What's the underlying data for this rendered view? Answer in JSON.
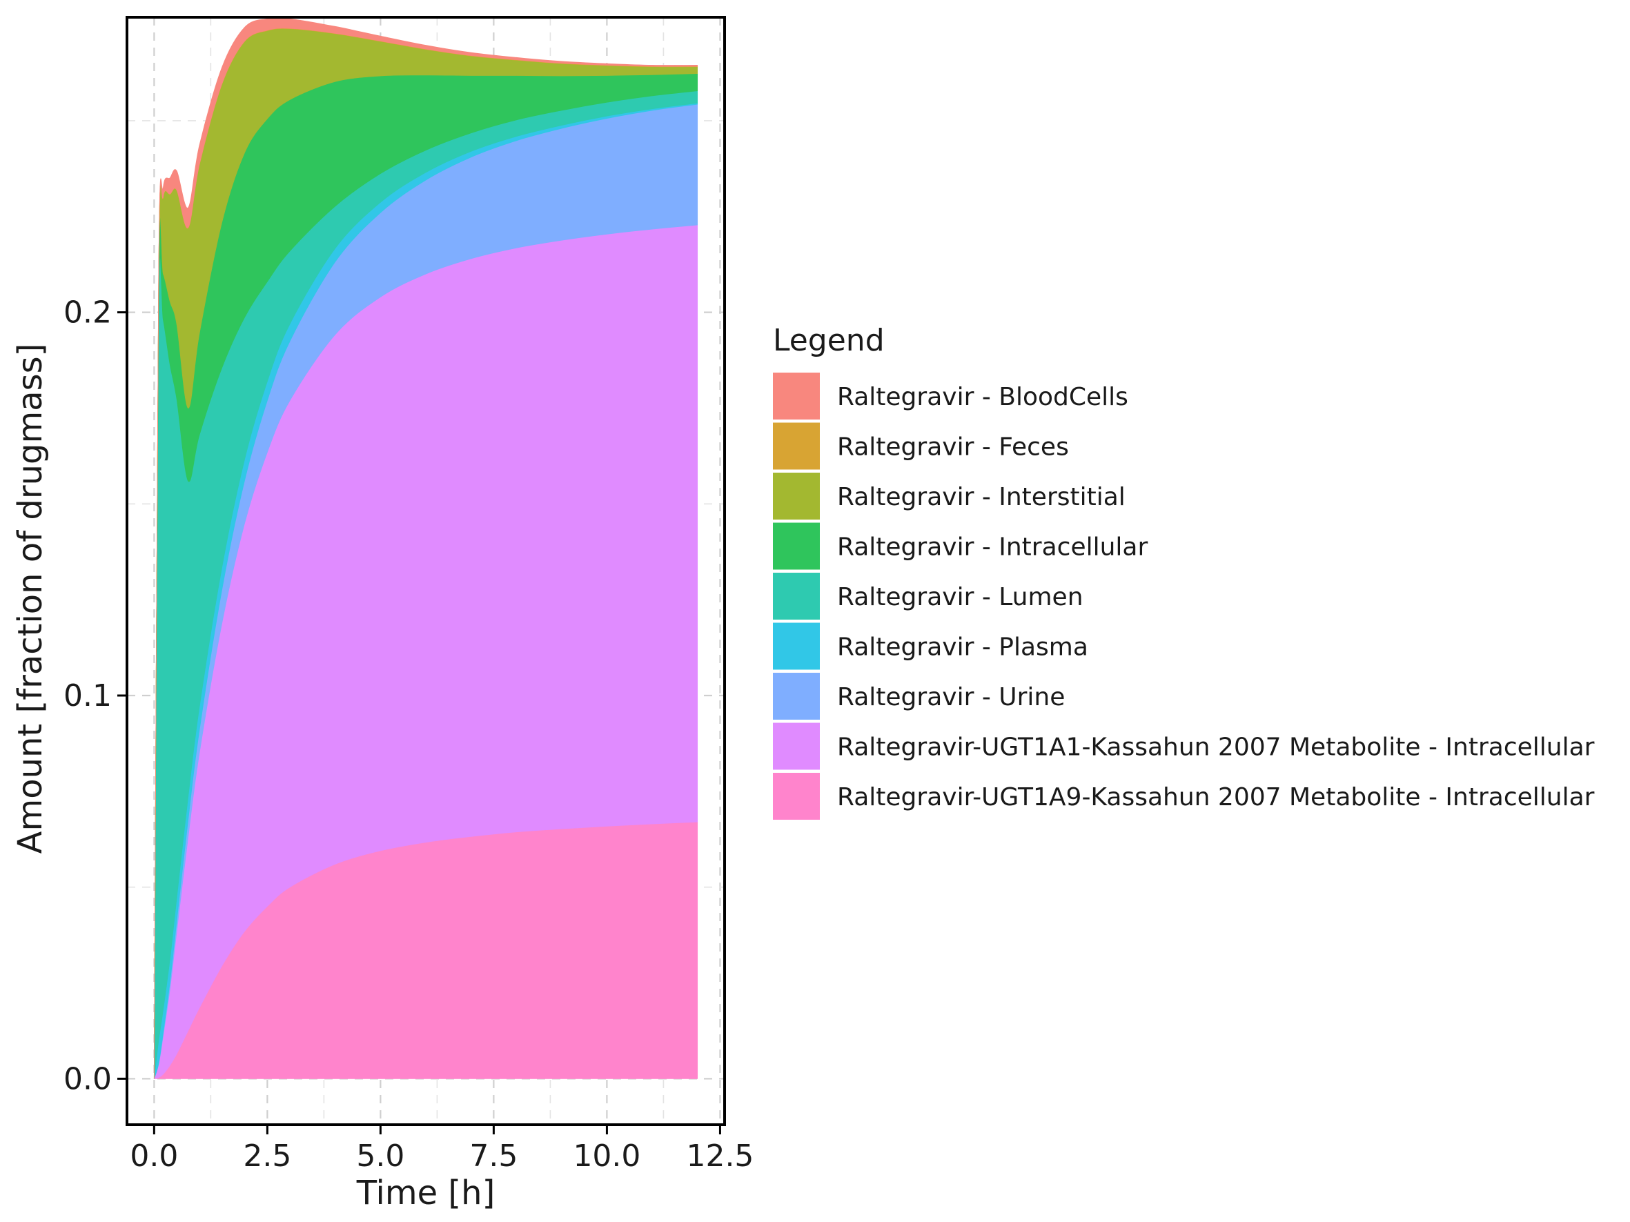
{
  "chart_data": {
    "type": "area",
    "stacked": true,
    "title": "",
    "xlabel": "Time [h]",
    "ylabel": "Amount [fraction of drugmass]",
    "xlim": [
      -0.6,
      12.6
    ],
    "ylim": [
      -0.012,
      0.277
    ],
    "x_ticks": [
      0.0,
      2.5,
      5.0,
      7.5,
      10.0,
      12.5
    ],
    "x_tick_labels": [
      "0.0",
      "2.5",
      "5.0",
      "7.5",
      "10.0",
      "12.5"
    ],
    "y_ticks": [
      0.0,
      0.1,
      0.2
    ],
    "y_tick_labels": [
      "0.0",
      "0.1",
      "0.2"
    ],
    "grid": true,
    "grid_style": "dashed",
    "legend": {
      "title": "Legend",
      "position": "right"
    },
    "x": [
      0,
      0.1,
      0.2,
      0.35,
      0.5,
      0.75,
      1.0,
      1.5,
      2.0,
      2.5,
      3.0,
      4.0,
      5.0,
      6.0,
      7.0,
      8.0,
      9.0,
      10.0,
      11.0,
      12.0
    ],
    "series": [
      {
        "name": "Raltegravir-UGT1A9-Kassahun 2007 Metabolite - Intracellular",
        "color": "#FF84CC",
        "values": [
          0,
          0.0003,
          0.0012,
          0.0035,
          0.0065,
          0.0125,
          0.0185,
          0.0295,
          0.0385,
          0.045,
          0.05,
          0.056,
          0.0595,
          0.0617,
          0.0632,
          0.0644,
          0.0652,
          0.0659,
          0.0665,
          0.067
        ]
      },
      {
        "name": "Raltegravir-UGT1A1-Kassahun 2007 Metabolite - Intracellular",
        "color": "#E08BFF",
        "values": [
          0,
          0.0035,
          0.01,
          0.02,
          0.032,
          0.0505,
          0.0665,
          0.0895,
          0.1065,
          0.1185,
          0.127,
          0.1382,
          0.1445,
          0.1483,
          0.1508,
          0.1524,
          0.1536,
          0.1545,
          0.1552,
          0.1558
        ]
      },
      {
        "name": "Raltegravir - Urine",
        "color": "#7FAEFF",
        "values": [
          0,
          0.0002,
          0.0008,
          0.0018,
          0.0028,
          0.0045,
          0.006,
          0.0088,
          0.0112,
          0.0135,
          0.0155,
          0.019,
          0.022,
          0.0245,
          0.0265,
          0.028,
          0.0292,
          0.0302,
          0.031,
          0.0315
        ]
      },
      {
        "name": "Raltegravir - Plasma",
        "color": "#31C7E7",
        "values": [
          0,
          0.006,
          0.006,
          0.006,
          0.006,
          0.006,
          0.006,
          0.0058,
          0.0055,
          0.005,
          0.0045,
          0.0035,
          0.0027,
          0.002,
          0.0015,
          0.0011,
          0.0008,
          0.0006,
          0.0004,
          0.0003
        ]
      },
      {
        "name": "Raltegravir - Lumen",
        "color": "#2ECAB0",
        "values": [
          0,
          0.19,
          0.18,
          0.155,
          0.13,
          0.0825,
          0.071,
          0.052,
          0.037,
          0.026,
          0.019,
          0.011,
          0.0075,
          0.0058,
          0.0048,
          0.0043,
          0.0039,
          0.0036,
          0.0034,
          0.0032
        ]
      },
      {
        "name": "Raltegravir - Intracellular",
        "color": "#2FC55C",
        "values": [
          0,
          0.009,
          0.012,
          0.0165,
          0.0195,
          0.019,
          0.0265,
          0.038,
          0.043,
          0.0425,
          0.0395,
          0.0325,
          0.0255,
          0.0196,
          0.015,
          0.0116,
          0.009,
          0.007,
          0.0055,
          0.0045
        ]
      },
      {
        "name": "Raltegravir - Interstitial",
        "color": "#A3B830",
        "values": [
          0,
          0.0015,
          0.02,
          0.028,
          0.035,
          0.047,
          0.044,
          0.036,
          0.029,
          0.023,
          0.0185,
          0.0125,
          0.009,
          0.0067,
          0.0051,
          0.004,
          0.0032,
          0.0026,
          0.0021,
          0.0018
        ]
      },
      {
        "name": "Raltegravir - Feces",
        "color": "#D8A433",
        "values": [
          0,
          0.0001,
          0.0001,
          0.0001,
          0.0001,
          0.0001,
          0.0001,
          0.0001,
          0.0001,
          0.0001,
          0.0001,
          0.0001,
          0.0001,
          0.0001,
          0.0001,
          0.0001,
          0.0001,
          0.0001,
          0.0001,
          0.0001
        ]
      },
      {
        "name": "Raltegravir - BloodCells",
        "color": "#F8877E",
        "values": [
          0,
          0.0005,
          0.0025,
          0.0042,
          0.005,
          0.0052,
          0.005,
          0.0043,
          0.0036,
          0.003,
          0.0025,
          0.0018,
          0.0013,
          0.001,
          0.0008,
          0.0006,
          0.0005,
          0.0004,
          0.0003,
          0.0003
        ]
      }
    ],
    "legend_order": [
      "Raltegravir - BloodCells",
      "Raltegravir - Feces",
      "Raltegravir - Interstitial",
      "Raltegravir - Intracellular",
      "Raltegravir - Lumen",
      "Raltegravir - Plasma",
      "Raltegravir - Urine",
      "Raltegravir-UGT1A1-Kassahun 2007 Metabolite - Intracellular",
      "Raltegravir-UGT1A9-Kassahun 2007 Metabolite - Intracellular"
    ]
  }
}
